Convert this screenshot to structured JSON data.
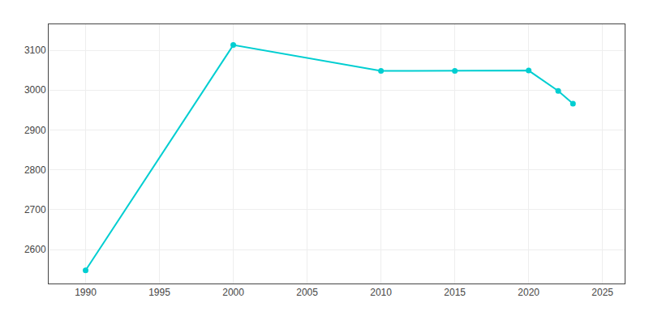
{
  "chart_data": {
    "type": "line",
    "x": [
      1990,
      2000,
      2010,
      2015,
      2020,
      2022,
      2023
    ],
    "values": [
      2548,
      3113,
      3048,
      3048,
      3049,
      2998,
      2966
    ],
    "color": "#00CED1",
    "marker": "circle",
    "xlim": [
      1987.5,
      2026.5
    ],
    "ylim": [
      2515,
      3165
    ],
    "xticks": [
      1990,
      1995,
      2000,
      2005,
      2010,
      2015,
      2020,
      2025
    ],
    "yticks": [
      2600,
      2700,
      2800,
      2900,
      3000,
      3100
    ],
    "grid": true
  }
}
